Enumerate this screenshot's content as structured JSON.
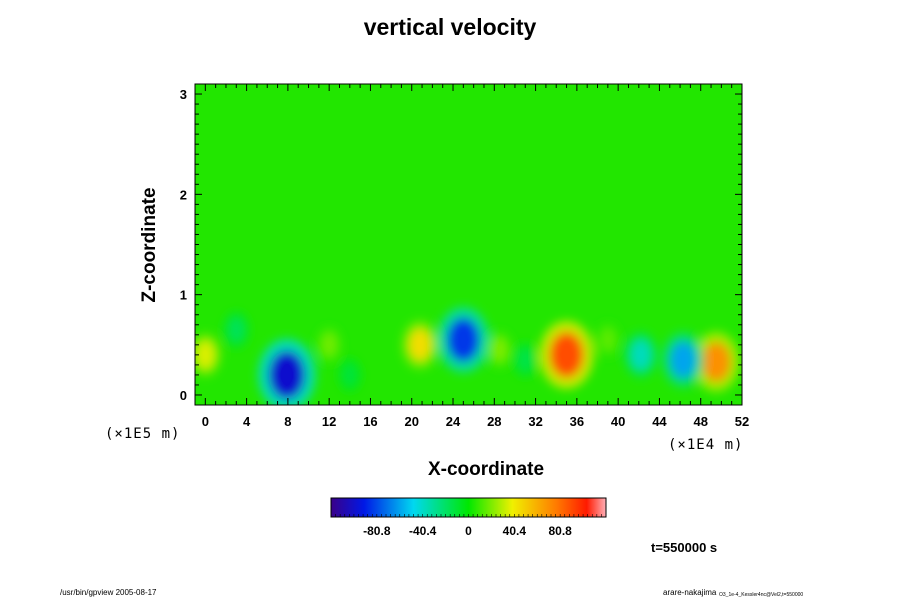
{
  "chart_data": {
    "type": "heatmap",
    "title": "vertical velocity",
    "xlabel": "X-coordinate",
    "ylabel": "Z-coordinate",
    "xlim": [
      -1,
      52
    ],
    "ylim": [
      -0.1,
      3.1
    ],
    "x_ticks": [
      "0",
      "4",
      "8",
      "12",
      "16",
      "20",
      "24",
      "28",
      "32",
      "36",
      "40",
      "44",
      "48",
      "52"
    ],
    "y_ticks": [
      "0",
      "1",
      "2",
      "3"
    ],
    "x_scale_label": "(×1E4 m)",
    "y_scale_label": "(×1E5 m)",
    "colorbar": {
      "ticks": [
        "-80.8",
        "-40.4",
        "0",
        "40.4",
        "80.8"
      ],
      "range": [
        -121.2,
        121.2
      ]
    },
    "features": [
      {
        "x": 7.9,
        "z": 0.2,
        "value": -100
      },
      {
        "x": 25.0,
        "z": 0.55,
        "value": -85
      },
      {
        "x": 35.0,
        "z": 0.4,
        "value": 90
      },
      {
        "x": 49.5,
        "z": 0.33,
        "value": 70
      },
      {
        "x": 46.3,
        "z": 0.35,
        "value": -60
      },
      {
        "x": 42.2,
        "z": 0.4,
        "value": -38
      },
      {
        "x": 20.8,
        "z": 0.5,
        "value": 45
      },
      {
        "x": 0.0,
        "z": 0.4,
        "value": 35
      },
      {
        "x": 3.0,
        "z": 0.65,
        "value": -18
      },
      {
        "x": 12.0,
        "z": 0.5,
        "value": 18
      },
      {
        "x": 28.5,
        "z": 0.45,
        "value": 20
      },
      {
        "x": 31.0,
        "z": 0.35,
        "value": -15
      },
      {
        "x": 14.0,
        "z": 0.2,
        "value": -12
      },
      {
        "x": 39.0,
        "z": 0.55,
        "value": 15
      }
    ]
  },
  "annotations": {
    "time": "t=550000 s",
    "footer_left": "/usr/bin/gpview 2005-08-17",
    "footer_right_user": "arare-nakajima",
    "footer_right_file": "O3_1e-4_Kessler4nc@Vel2,t=550000"
  }
}
